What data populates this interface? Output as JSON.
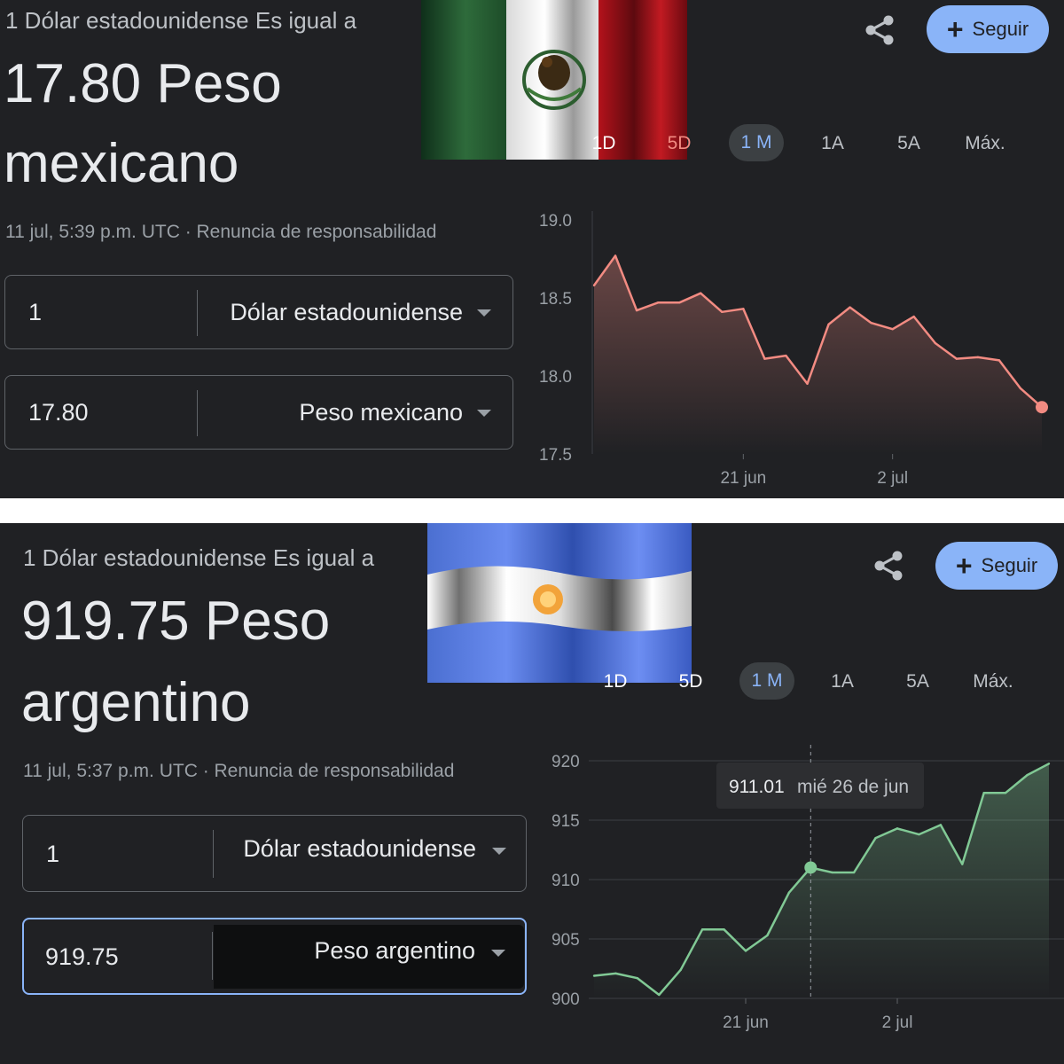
{
  "mx": {
    "heading": "1 Dólar estadounidense Es igual a",
    "value_line1": "17.80 Peso",
    "value_line2": "mexicano",
    "timestamp": "11 jul, 5:39 p.m. UTC · Renuncia de responsabilidad",
    "follow_label": "Seguir",
    "share_icon": "share-icon",
    "tabs": [
      "1D",
      "5D",
      "1 M",
      "1A",
      "5A",
      "Máx."
    ],
    "active_tab": "1 M",
    "from": {
      "amount": "1",
      "currency": "Dólar estadounidense"
    },
    "to": {
      "amount": "17.80",
      "currency": "Peso mexicano"
    },
    "colors": {
      "line": "#f28b82"
    }
  },
  "ar": {
    "heading": "1 Dólar estadounidense Es igual a",
    "value_line1": "919.75 Peso",
    "value_line2": "argentino",
    "timestamp": "11 jul, 5:37 p.m. UTC · Renuncia de responsabilidad",
    "follow_label": "Seguir",
    "share_icon": "share-icon",
    "tabs": [
      "1D",
      "5D",
      "1 M",
      "1A",
      "5A",
      "Máx."
    ],
    "active_tab": "1 M",
    "from": {
      "amount": "1",
      "currency": "Dólar estadounidense"
    },
    "to": {
      "amount": "919.75",
      "currency": "Peso argentino"
    },
    "tooltip": {
      "value": "911.01",
      "date": "mié 26 de jun"
    },
    "colors": {
      "line": "#81c995"
    }
  },
  "chart_data": [
    {
      "type": "area",
      "ylim": [
        17.5,
        19.0
      ],
      "y_ticks": [
        "19.0",
        "18.5",
        "18.0",
        "17.5"
      ],
      "x_ticks": [
        "21 jun",
        "2 jul"
      ],
      "x": [
        "12 jun",
        "13 jun",
        "14 jun",
        "17 jun",
        "18 jun",
        "19 jun",
        "20 jun",
        "21 jun",
        "24 jun",
        "25 jun",
        "26 jun",
        "27 jun",
        "28 jun",
        "1 jul",
        "2 jul",
        "3 jul",
        "4 jul",
        "5 jul",
        "8 jul",
        "9 jul",
        "10 jul",
        "11 jul"
      ],
      "values": [
        18.58,
        18.77,
        18.42,
        18.47,
        18.47,
        18.53,
        18.41,
        18.43,
        18.11,
        18.13,
        17.95,
        18.33,
        18.44,
        18.34,
        18.3,
        18.38,
        18.21,
        18.11,
        18.12,
        18.1,
        17.92,
        17.8
      ]
    },
    {
      "type": "area",
      "ylim": [
        900,
        920
      ],
      "y_ticks": [
        "920",
        "915",
        "910",
        "905",
        "900"
      ],
      "x_ticks": [
        "21 jun",
        "2 jul"
      ],
      "x": [
        "12 jun",
        "13 jun",
        "14 jun",
        "17 jun",
        "18 jun",
        "19 jun",
        "20 jun",
        "21 jun",
        "24 jun",
        "25 jun",
        "26 jun",
        "27 jun",
        "28 jun",
        "1 jul",
        "2 jul",
        "3 jul",
        "4 jul",
        "5 jul",
        "8 jul",
        "9 jul",
        "10 jul",
        "11 jul"
      ],
      "values": [
        901.9,
        902.1,
        901.7,
        900.3,
        902.4,
        905.8,
        905.8,
        904.0,
        905.3,
        908.9,
        911.01,
        910.6,
        910.6,
        913.5,
        914.3,
        913.8,
        914.6,
        911.3,
        917.3,
        917.3,
        918.8,
        919.75
      ],
      "highlight": {
        "x": "26 jun",
        "value": 911.01
      }
    }
  ]
}
